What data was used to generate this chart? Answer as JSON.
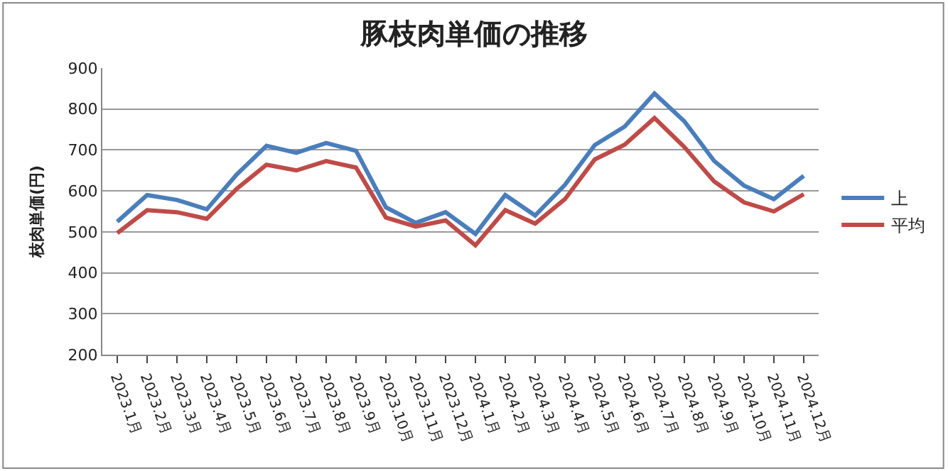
{
  "chart_data": {
    "type": "line",
    "title": "豚枝肉単価の推移",
    "ylabel": "枝肉単価(円)",
    "categories": [
      "2023.1月",
      "2023.2月",
      "2023.3月",
      "2023.4月",
      "2023.5月",
      "2023.6月",
      "2023.7月",
      "2023.8月",
      "2023.9月",
      "2023.10月",
      "2023.11月",
      "2023.12月",
      "2024.1月",
      "2024.2月",
      "2024.3月",
      "2024.4月",
      "2024.5月",
      "2024.6月",
      "2024.7月",
      "2024.8月",
      "2024.9月",
      "2024.10月",
      "2024.11月",
      "2024.12月"
    ],
    "series": [
      {
        "name": "上",
        "color": "#4a7ebb",
        "values": [
          525,
          590,
          578,
          555,
          640,
          710,
          693,
          717,
          698,
          560,
          522,
          548,
          495,
          590,
          540,
          615,
          712,
          757,
          838,
          770,
          673,
          613,
          580,
          637
        ]
      },
      {
        "name": "平均",
        "color": "#be4b48",
        "values": [
          497,
          553,
          548,
          532,
          605,
          664,
          650,
          673,
          657,
          535,
          513,
          528,
          467,
          553,
          520,
          580,
          677,
          713,
          778,
          707,
          623,
          572,
          550,
          592
        ]
      }
    ],
    "ylim": [
      200,
      900
    ],
    "yticks": [
      200,
      300,
      400,
      500,
      600,
      700,
      800,
      900
    ],
    "grid": "y",
    "legend": "right",
    "marker": "none",
    "line_style": "solid"
  }
}
